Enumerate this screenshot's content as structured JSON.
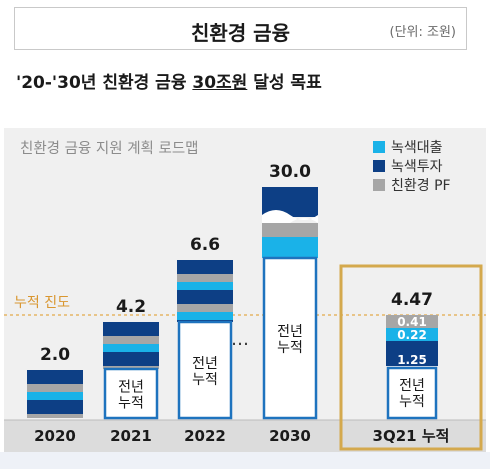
{
  "header": {
    "title": "친환경 금융",
    "unit": "(단위: 조원)"
  },
  "subtitle": {
    "prefix": "'20-'30년 친환경 금융 ",
    "highlight": "30조원",
    "suffix": " 달성 목표"
  },
  "chart_data": {
    "type": "bar",
    "stacked": true,
    "title": "친환경 금융 지원 계획 로드맵",
    "categories": [
      "2020",
      "2021",
      "2022",
      "2030"
    ],
    "totals": [
      2.0,
      4.2,
      6.6,
      30.0
    ],
    "total_labels": [
      "2.0",
      "4.2",
      "6.6",
      "30.0"
    ],
    "previous_cumulative_label": "전년\n누적",
    "ellipsis": "…",
    "legend": [
      {
        "name": "녹색대출",
        "color": "#1ab2e8"
      },
      {
        "name": "녹색투자",
        "color": "#0d3f85"
      },
      {
        "name": "친환경 PF",
        "color": "#a6a6a6"
      }
    ],
    "progress_line_label": "누적 진도",
    "progress_value": 4.47,
    "current": {
      "label": "3Q21 누적",
      "total": 4.47,
      "total_label": "4.47",
      "series": [
        {
          "name": "녹색투자",
          "value": 1.25,
          "label": "1.25"
        },
        {
          "name": "녹색대출",
          "value": 0.22,
          "label": "0.22"
        },
        {
          "name": "친환경 PF",
          "value": 0.41,
          "label": "0.41"
        }
      ],
      "previous_cumulative_label": "전년\n누적"
    }
  }
}
